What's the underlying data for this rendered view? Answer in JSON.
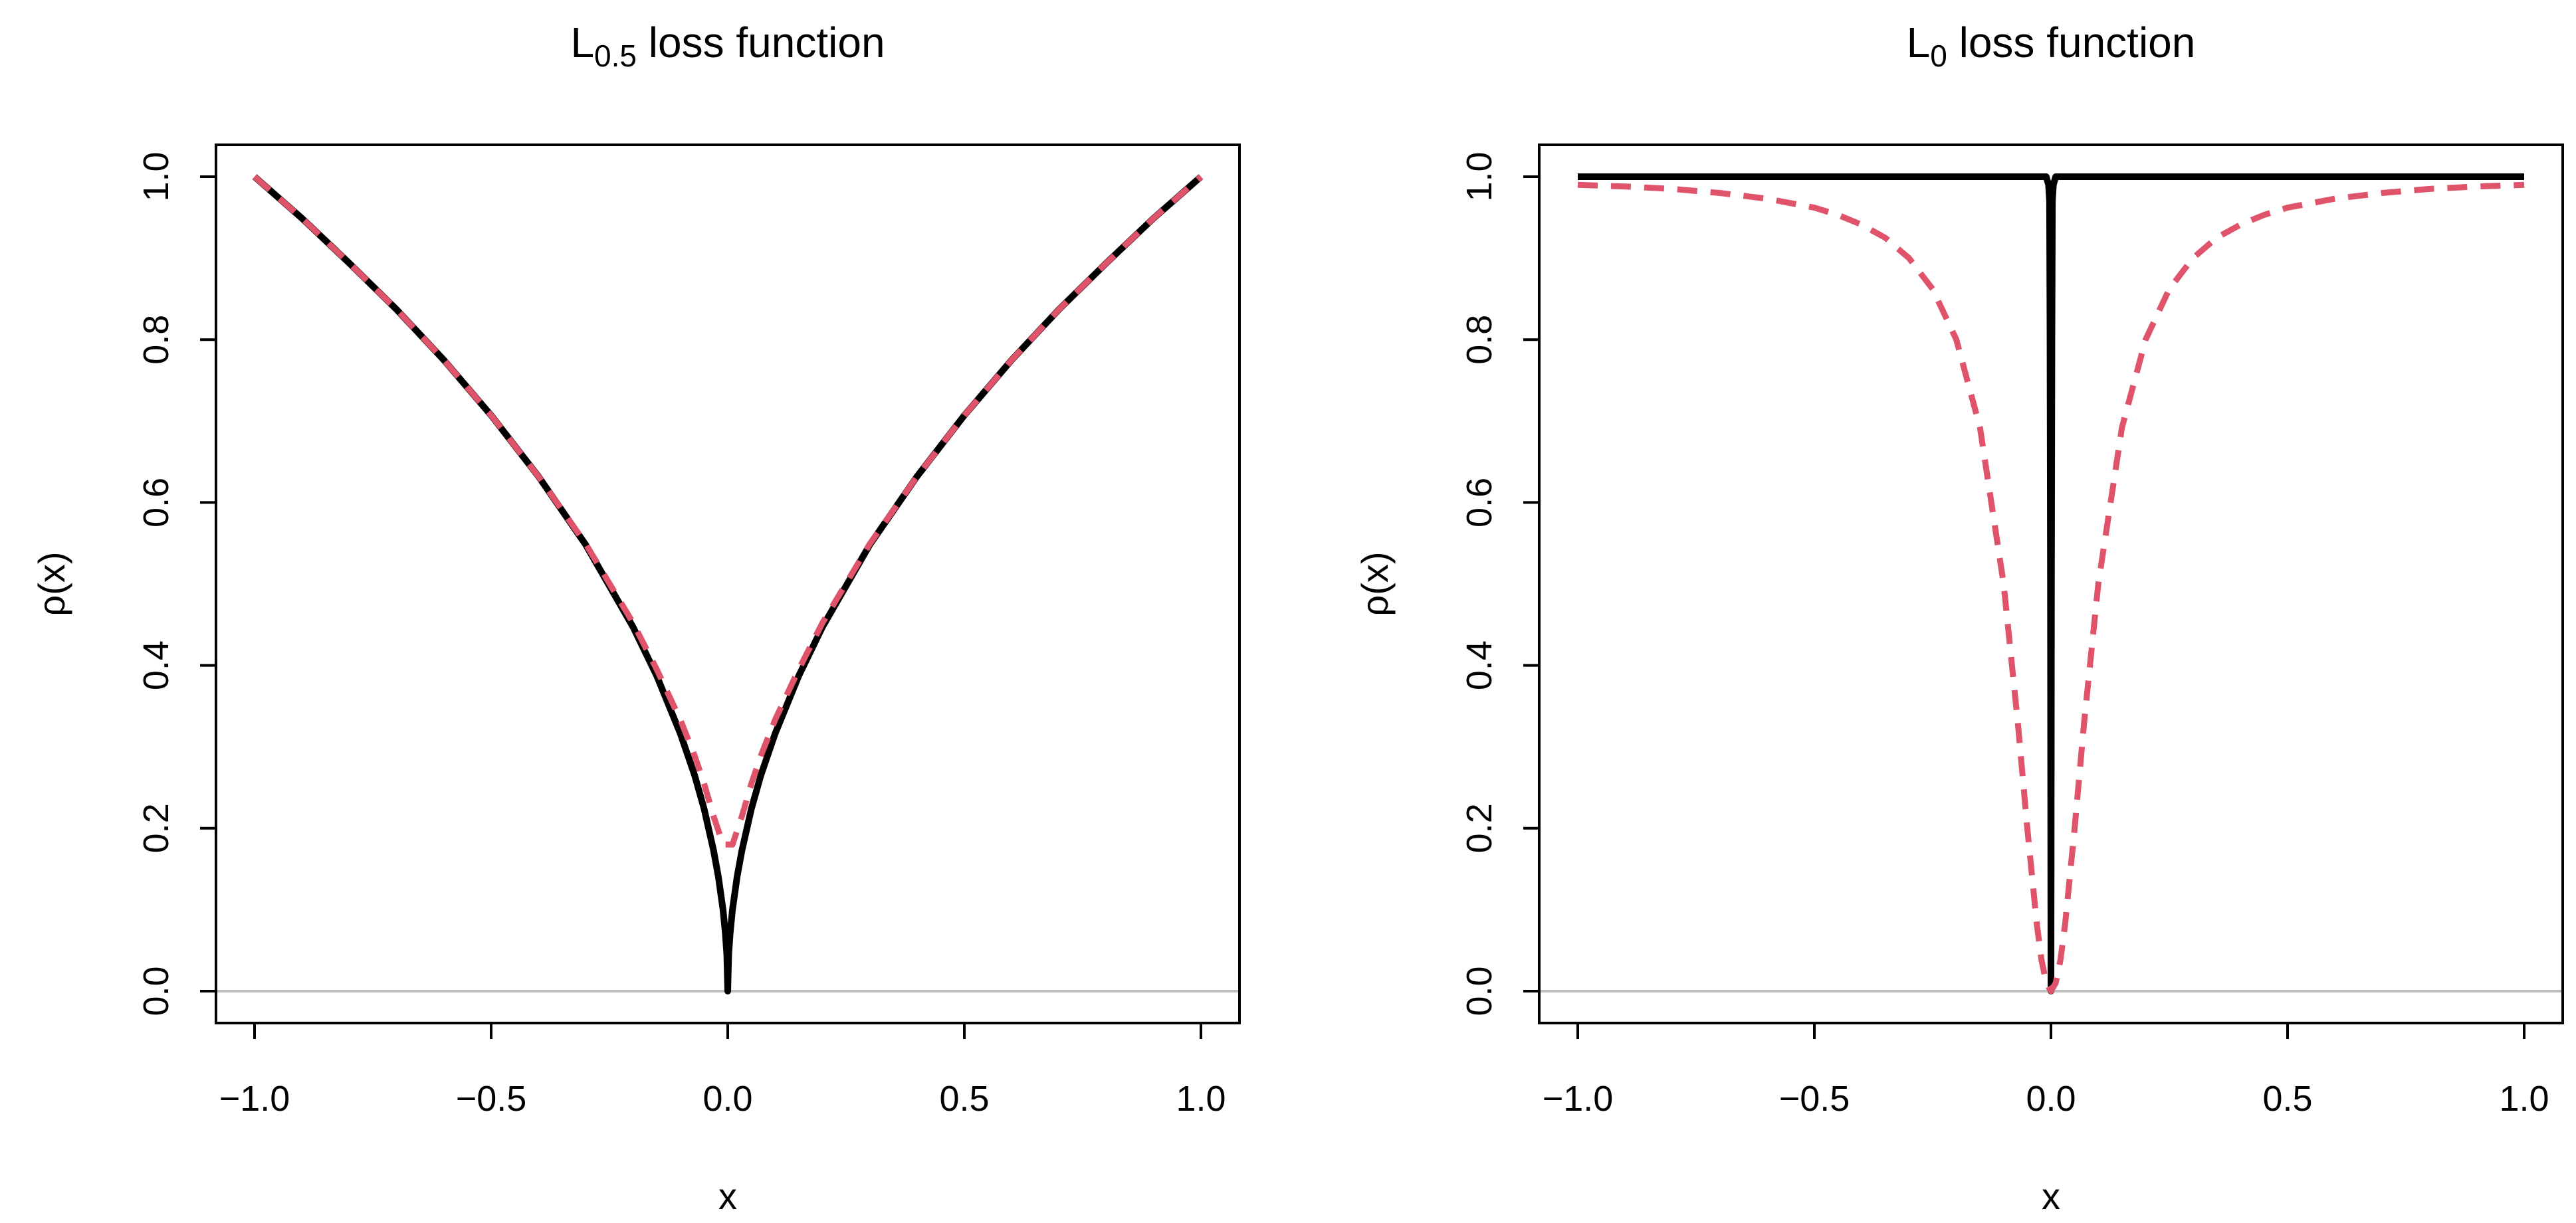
{
  "chart_data": [
    {
      "type": "line",
      "title": {
        "base": "L",
        "sub": "0.5",
        "rest": " loss function"
      },
      "xlabel": "x",
      "ylabel": "ρ(x)",
      "xlim": [
        -1.0,
        1.0
      ],
      "ylim": [
        0.0,
        1.0
      ],
      "xticks": [
        -1.0,
        -0.5,
        0.0,
        0.5,
        1.0
      ],
      "xtick_labels": [
        "−1.0",
        "−0.5",
        "0.0",
        "0.5",
        "1.0"
      ],
      "yticks": [
        0.0,
        0.2,
        0.4,
        0.6,
        0.8,
        1.0
      ],
      "ytick_labels": [
        "0.0",
        "0.2",
        "0.4",
        "0.6",
        "0.8",
        "1.0"
      ],
      "grid": false,
      "reference_line_y": 0.0,
      "series": [
        {
          "style": "solid",
          "color": "#000000",
          "x": [
            -1.0,
            -0.9,
            -0.8,
            -0.7,
            -0.6,
            -0.5,
            -0.4,
            -0.3,
            -0.2,
            -0.15,
            -0.1,
            -0.07,
            -0.05,
            -0.03,
            -0.02,
            -0.01,
            -0.005,
            -0.002,
            0.0,
            0.002,
            0.005,
            0.01,
            0.02,
            0.03,
            0.05,
            0.07,
            0.1,
            0.15,
            0.2,
            0.3,
            0.4,
            0.5,
            0.6,
            0.7,
            0.8,
            0.9,
            1.0
          ],
          "y": [
            1.0,
            0.949,
            0.894,
            0.837,
            0.775,
            0.707,
            0.632,
            0.548,
            0.447,
            0.387,
            0.316,
            0.265,
            0.224,
            0.173,
            0.141,
            0.1,
            0.071,
            0.045,
            0.0,
            0.045,
            0.071,
            0.1,
            0.141,
            0.173,
            0.224,
            0.265,
            0.316,
            0.387,
            0.447,
            0.548,
            0.632,
            0.707,
            0.775,
            0.837,
            0.894,
            0.949,
            1.0
          ]
        },
        {
          "style": "dashed",
          "color": "#df536b",
          "x": [
            -1.0,
            -0.9,
            -0.8,
            -0.7,
            -0.6,
            -0.5,
            -0.4,
            -0.3,
            -0.2,
            -0.15,
            -0.1,
            -0.07,
            -0.05,
            -0.03,
            -0.01,
            0.01,
            0.03,
            0.05,
            0.07,
            0.1,
            0.15,
            0.2,
            0.3,
            0.4,
            0.5,
            0.6,
            0.7,
            0.8,
            0.9,
            1.0
          ],
          "y": [
            1.0,
            0.949,
            0.894,
            0.837,
            0.775,
            0.707,
            0.632,
            0.549,
            0.452,
            0.395,
            0.333,
            0.289,
            0.255,
            0.215,
            0.18,
            0.18,
            0.215,
            0.255,
            0.289,
            0.333,
            0.395,
            0.452,
            0.549,
            0.632,
            0.707,
            0.775,
            0.837,
            0.894,
            0.949,
            1.0
          ]
        }
      ]
    },
    {
      "type": "line",
      "title": {
        "base": "L",
        "sub": "0",
        "rest": " loss function"
      },
      "xlabel": "x",
      "ylabel": "ρ(x)",
      "xlim": [
        -1.0,
        1.0
      ],
      "ylim": [
        0.0,
        1.0
      ],
      "xticks": [
        -1.0,
        -0.5,
        0.0,
        0.5,
        1.0
      ],
      "xtick_labels": [
        "−1.0",
        "−0.5",
        "0.0",
        "0.5",
        "1.0"
      ],
      "yticks": [
        0.0,
        0.2,
        0.4,
        0.6,
        0.8,
        1.0
      ],
      "ytick_labels": [
        "0.0",
        "0.2",
        "0.4",
        "0.6",
        "0.8",
        "1.0"
      ],
      "grid": false,
      "reference_line_y": 0.0,
      "series": [
        {
          "style": "solid",
          "color": "#000000",
          "x": [
            -1.0,
            -0.02,
            -0.01,
            -0.005,
            -0.003,
            -0.002,
            -0.001,
            0.0,
            0.001,
            0.002,
            0.003,
            0.005,
            0.01,
            0.02,
            1.0
          ],
          "y": [
            1.0,
            1.0,
            1.0,
            0.99,
            0.97,
            0.8,
            0.5,
            0.0,
            0.5,
            0.8,
            0.97,
            0.99,
            1.0,
            1.0,
            1.0
          ]
        },
        {
          "style": "dashed",
          "color": "#df536b",
          "x": [
            -1.0,
            -0.9,
            -0.8,
            -0.7,
            -0.6,
            -0.5,
            -0.45,
            -0.4,
            -0.35,
            -0.3,
            -0.25,
            -0.2,
            -0.15,
            -0.1,
            -0.07,
            -0.05,
            -0.03,
            -0.02,
            -0.01,
            0.0,
            0.01,
            0.02,
            0.03,
            0.05,
            0.07,
            0.1,
            0.15,
            0.2,
            0.25,
            0.3,
            0.35,
            0.4,
            0.45,
            0.5,
            0.6,
            0.7,
            0.8,
            0.9,
            1.0
          ],
          "y": [
            0.99,
            0.988,
            0.985,
            0.98,
            0.973,
            0.962,
            0.953,
            0.941,
            0.925,
            0.9,
            0.862,
            0.8,
            0.692,
            0.5,
            0.329,
            0.2,
            0.083,
            0.038,
            0.01,
            0.0,
            0.01,
            0.038,
            0.083,
            0.2,
            0.329,
            0.5,
            0.692,
            0.8,
            0.862,
            0.9,
            0.925,
            0.941,
            0.953,
            0.962,
            0.973,
            0.98,
            0.985,
            0.988,
            0.99
          ]
        }
      ]
    }
  ]
}
